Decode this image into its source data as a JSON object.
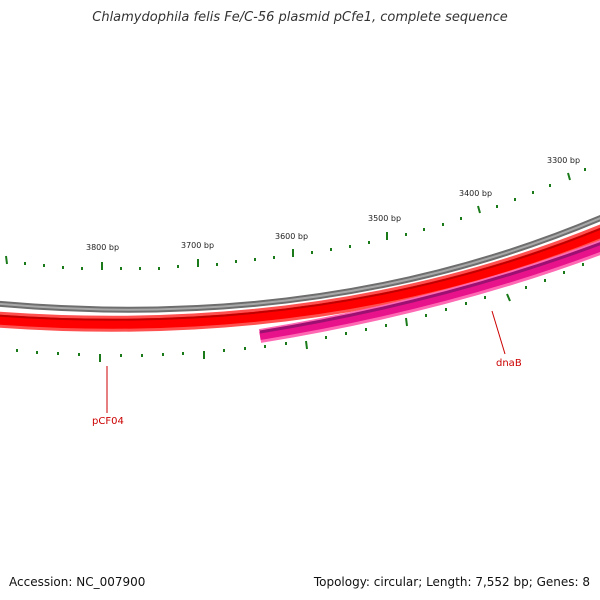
{
  "title": "Chlamydophila felis Fe/C-56 plasmid pCfe1, complete sequence",
  "footer": {
    "accession": "Accession: NC_007900",
    "topology": "Topology: circular; Length: 7,552 bp; Genes: 8"
  },
  "ticks": [
    {
      "label": "3300 bp",
      "position": 3300
    },
    {
      "label": "3400 bp",
      "position": 3400
    },
    {
      "label": "3500 bp",
      "position": 3500
    },
    {
      "label": "3600 bp",
      "position": 3600
    },
    {
      "label": "3700 bp",
      "position": 3700
    },
    {
      "label": "3800 bp",
      "position": 3800
    }
  ],
  "genes": [
    {
      "name": "pCF04",
      "strand": "forward",
      "color": "#ff0000"
    },
    {
      "name": "dnaB",
      "strand": "reverse",
      "color": "#ff1493"
    }
  ],
  "colors": {
    "backbone": "#8a8a8a",
    "forward_gene": "#ff0000",
    "reverse_gene": "#ff1493",
    "ticks": "#1a7a1a",
    "gene_label": "#cc0000"
  }
}
